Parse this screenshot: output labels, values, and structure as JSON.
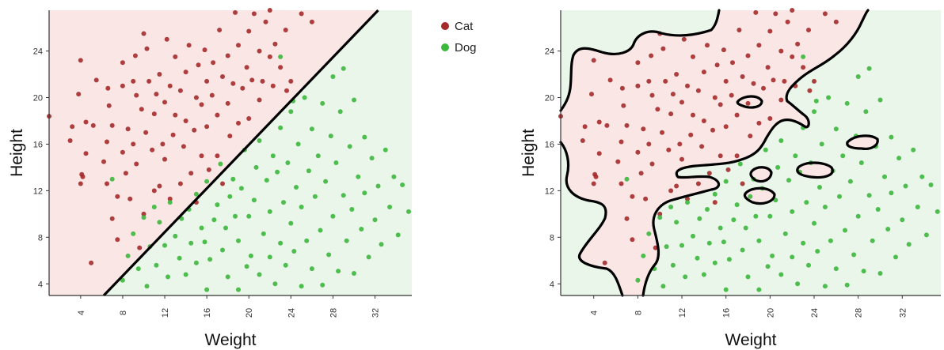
{
  "legend": {
    "entries": [
      {
        "label": "Cat",
        "color": "#a52a2a"
      },
      {
        "label": "Dog",
        "color": "#3cb83c"
      }
    ],
    "placement": "top-center between panels"
  },
  "colors": {
    "cat_region": "#fbe6e6",
    "dog_region": "#eaf6ea",
    "boundary": "#000000"
  },
  "chart_data": [
    {
      "type": "scatter",
      "panel": "left",
      "title": "",
      "xlabel": "Weight",
      "ylabel": "Height",
      "xlim": [
        1,
        35.5
      ],
      "ylim": [
        3,
        27.5
      ],
      "xticks": [
        4,
        8,
        12,
        16,
        20,
        24,
        28,
        32
      ],
      "yticks": [
        4,
        8,
        12,
        16,
        20,
        24
      ],
      "grid": false,
      "boundary": {
        "type": "linear",
        "points": [
          [
            6.2,
            3
          ],
          [
            32.3,
            27.5
          ]
        ]
      },
      "series": [
        {
          "name": "Cat",
          "points": [
            [
              1,
              18.4
            ],
            [
              3,
              16.3
            ],
            [
              3.2,
              17.5
            ],
            [
              3.8,
              20.3
            ],
            [
              4,
              23.2
            ],
            [
              4,
              12.6
            ],
            [
              4.1,
              13.4
            ],
            [
              4.2,
              13.2
            ],
            [
              4.5,
              15.2
            ],
            [
              4.5,
              17.9
            ],
            [
              5,
              5.8
            ],
            [
              5.2,
              17.6
            ],
            [
              5.5,
              21.5
            ],
            [
              6.2,
              14.5
            ],
            [
              6.5,
              12.6
            ],
            [
              6.5,
              16.2
            ],
            [
              6.6,
              20.8
            ],
            [
              6.7,
              19.3
            ],
            [
              7,
              9.6
            ],
            [
              7,
              17.6
            ],
            [
              7.5,
              7.8
            ],
            [
              7.5,
              11.5
            ],
            [
              8,
              23
            ],
            [
              8,
              15.3
            ],
            [
              8,
              21
            ],
            [
              8.3,
              13.5
            ],
            [
              8.5,
              17.3
            ],
            [
              8.7,
              11.3
            ],
            [
              9,
              21.4
            ],
            [
              9,
              16
            ],
            [
              9.2,
              23.6
            ],
            [
              9.3,
              20.2
            ],
            [
              9.3,
              14.3
            ],
            [
              9.6,
              7.1
            ],
            [
              9.8,
              19
            ],
            [
              10,
              25.5
            ],
            [
              10,
              10
            ],
            [
              10.2,
              17
            ],
            [
              10.3,
              24.2
            ],
            [
              10.5,
              21.4
            ],
            [
              10.8,
              15.5
            ],
            [
              11,
              12
            ],
            [
              11,
              18.6
            ],
            [
              11.2,
              20.3
            ],
            [
              11.5,
              22
            ],
            [
              11.5,
              12.4
            ],
            [
              11.8,
              16
            ],
            [
              12,
              14.7
            ],
            [
              12,
              19.6
            ],
            [
              12.2,
              25
            ],
            [
              12.5,
              21
            ],
            [
              12.5,
              11.3
            ],
            [
              12.8,
              16.8
            ],
            [
              13,
              18.5
            ],
            [
              13,
              23.5
            ],
            [
              13.5,
              20.6
            ],
            [
              13.5,
              12.6
            ],
            [
              13.8,
              15.8
            ],
            [
              14,
              18
            ],
            [
              14,
              22.2
            ],
            [
              14.3,
              24.5
            ],
            [
              14.5,
              13.5
            ],
            [
              14.8,
              17.2
            ],
            [
              15,
              20
            ],
            [
              15,
              11
            ],
            [
              15.2,
              22.8
            ],
            [
              15.5,
              15
            ],
            [
              15.5,
              19.4
            ],
            [
              15.8,
              24.1
            ],
            [
              16,
              17.5
            ],
            [
              16,
              21.4
            ],
            [
              16.2,
              13.8
            ],
            [
              16.5,
              20.2
            ],
            [
              16.6,
              23
            ],
            [
              17,
              18.5
            ],
            [
              17,
              15
            ],
            [
              17.2,
              25.8
            ],
            [
              17.5,
              21.8
            ],
            [
              17.5,
              12.6
            ],
            [
              18,
              19.5
            ],
            [
              18,
              23.6
            ],
            [
              18.2,
              16.7
            ],
            [
              18.5,
              21.2
            ],
            [
              18.7,
              27.3
            ],
            [
              19,
              17.8
            ],
            [
              19,
              24.5
            ],
            [
              19.4,
              20.8
            ],
            [
              19.8,
              22.6
            ],
            [
              20,
              18.2
            ],
            [
              20,
              25.7
            ],
            [
              20.3,
              21.5
            ],
            [
              20.5,
              27.2
            ],
            [
              21,
              19.8
            ],
            [
              21,
              24
            ],
            [
              21.3,
              21.4
            ],
            [
              21.6,
              26.5
            ],
            [
              22,
              23.5
            ],
            [
              22,
              27.5
            ],
            [
              22.3,
              21
            ],
            [
              22.5,
              24.6
            ],
            [
              23,
              22.6
            ],
            [
              23.5,
              25.8
            ],
            [
              23.6,
              20.6
            ],
            [
              24,
              21.4
            ],
            [
              25,
              27.2
            ],
            [
              26,
              26.5
            ]
          ]
        },
        {
          "name": "Dog",
          "points": [
            [
              7,
              13
            ],
            [
              8,
              4.3
            ],
            [
              8.5,
              6.4
            ],
            [
              9,
              8.3
            ],
            [
              9.5,
              5.3
            ],
            [
              10,
              9.7
            ],
            [
              10.3,
              3.8
            ],
            [
              10.6,
              7.2
            ],
            [
              11,
              10.6
            ],
            [
              11.2,
              5.6
            ],
            [
              11.5,
              9.3
            ],
            [
              12,
              7.3
            ],
            [
              12.3,
              4.6
            ],
            [
              12.5,
              11
            ],
            [
              13,
              8.1
            ],
            [
              13.4,
              6.2
            ],
            [
              13.6,
              9.6
            ],
            [
              14,
              4.8
            ],
            [
              14.3,
              10.4
            ],
            [
              14.5,
              7.5
            ],
            [
              15,
              11.7
            ],
            [
              15,
              5.8
            ],
            [
              15.5,
              8.8
            ],
            [
              15.8,
              7.6
            ],
            [
              16,
              12.8
            ],
            [
              16,
              3.5
            ],
            [
              16.3,
              6.1
            ],
            [
              16.7,
              9.5
            ],
            [
              17,
              10.8
            ],
            [
              17.3,
              14.3
            ],
            [
              17.5,
              6.9
            ],
            [
              17.8,
              8.8
            ],
            [
              18,
              4.6
            ],
            [
              18.2,
              11.5
            ],
            [
              18.5,
              13
            ],
            [
              18.7,
              9.8
            ],
            [
              19,
              3.5
            ],
            [
              19,
              7.7
            ],
            [
              19.3,
              12.2
            ],
            [
              19.6,
              15.5
            ],
            [
              19.8,
              5.5
            ],
            [
              20,
              9.8
            ],
            [
              20.2,
              6.4
            ],
            [
              20.5,
              11.2
            ],
            [
              20.7,
              14
            ],
            [
              21,
              4.8
            ],
            [
              21,
              16.3
            ],
            [
              21.4,
              8.3
            ],
            [
              21.7,
              12.9
            ],
            [
              22,
              6.3
            ],
            [
              22,
              10.2
            ],
            [
              22.3,
              15
            ],
            [
              22.5,
              4
            ],
            [
              22.7,
              13.6
            ],
            [
              23,
              7.5
            ],
            [
              23,
              17.4
            ],
            [
              23.3,
              11
            ],
            [
              23.5,
              5.6
            ],
            [
              23.7,
              14.4
            ],
            [
              24,
              9.2
            ],
            [
              24,
              18.8
            ],
            [
              24.3,
              6.8
            ],
            [
              24.5,
              12.3
            ],
            [
              24.7,
              16
            ],
            [
              25,
              3.8
            ],
            [
              25,
              10.6
            ],
            [
              25.3,
              20
            ],
            [
              25.5,
              7.7
            ],
            [
              25.7,
              13.7
            ],
            [
              26,
              17.3
            ],
            [
              26,
              5.3
            ],
            [
              26.3,
              11.5
            ],
            [
              26.6,
              15
            ],
            [
              26.8,
              8.6
            ],
            [
              27,
              19.5
            ],
            [
              27,
              3.9
            ],
            [
              27.3,
              12.8
            ],
            [
              27.6,
              6.5
            ],
            [
              27.8,
              16.7
            ],
            [
              28,
              9.8
            ],
            [
              28,
              21.8
            ],
            [
              28.3,
              14.4
            ],
            [
              28.5,
              5.1
            ],
            [
              28.7,
              18.8
            ],
            [
              29,
              11.6
            ],
            [
              29,
              22.5
            ],
            [
              29.3,
              7.7
            ],
            [
              29.6,
              15.8
            ],
            [
              29.8,
              10.4
            ],
            [
              30,
              19.8
            ],
            [
              30,
              4.9
            ],
            [
              30.4,
              13.2
            ],
            [
              30.7,
              8.7
            ],
            [
              31,
              16.6
            ],
            [
              31,
              11.8
            ],
            [
              31.4,
              6.3
            ],
            [
              31.7,
              14.8
            ],
            [
              32,
              9.5
            ],
            [
              32.3,
              12.4
            ],
            [
              32.6,
              7.4
            ],
            [
              33,
              15.5
            ],
            [
              33.4,
              10.6
            ],
            [
              33.8,
              13.2
            ],
            [
              34.2,
              8.2
            ],
            [
              34.6,
              12.5
            ],
            [
              35.2,
              10.2
            ],
            [
              23,
              23.5
            ],
            [
              24.2,
              19.7
            ]
          ]
        }
      ]
    },
    {
      "type": "scatter",
      "panel": "right",
      "title": "",
      "xlabel": "Weight",
      "ylabel": "Height",
      "xlim": [
        1,
        35.5
      ],
      "ylim": [
        3,
        27.5
      ],
      "xticks": [
        4,
        8,
        12,
        16,
        20,
        24,
        28,
        32
      ],
      "yticks": [
        4,
        8,
        12,
        16,
        20,
        24
      ],
      "grid": false,
      "boundary": {
        "type": "nonlinear"
      },
      "series": [
        {
          "name": "Cat",
          "points": "same as left panel"
        },
        {
          "name": "Dog",
          "points": "same as left panel"
        }
      ]
    }
  ]
}
